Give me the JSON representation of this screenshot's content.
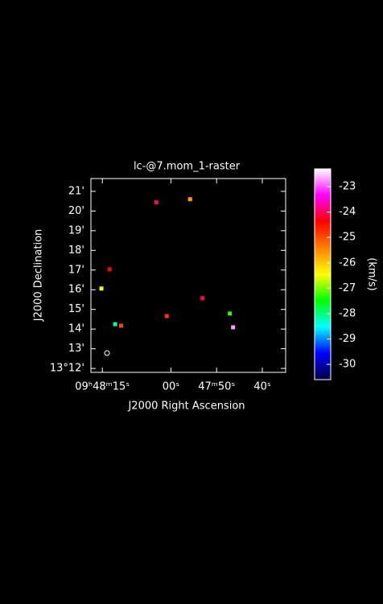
{
  "chart_data": {
    "type": "raster",
    "title": "lc-@7.mom_1-raster",
    "x_label": "J2000 Right Ascension",
    "y_label": "J2000 Declination",
    "colorbar_label": "(km/s)",
    "x": [
      3.2,
      -4.2,
      13.4,
      15.2,
      12.2,
      10.9,
      0.9,
      -6.9,
      -12.9,
      -13.6
    ],
    "y": [
      20.44,
      20.6,
      17.04,
      16.06,
      14.25,
      14.17,
      14.66,
      15.57,
      14.79,
      14.09
    ],
    "values": [
      -23.9,
      -25.6,
      -24.4,
      -26.5,
      -28.1,
      -24.9,
      -24.8,
      -24.1,
      -27.3,
      -22.7
    ],
    "xlim": [
      17.5,
      -25.1
    ],
    "ylim": [
      11.8,
      21.65
    ],
    "xticks": [
      {
        "value": 15,
        "label": "09ʰ48ᵐ15ˢ"
      },
      {
        "value": 0,
        "label": "00ˢ"
      },
      {
        "value": -10,
        "label": "47ᵐ50ˢ"
      },
      {
        "value": -20,
        "label": "40ˢ"
      }
    ],
    "yticks": [
      {
        "value": 12,
        "label": "13°12'"
      },
      {
        "value": 13,
        "label": "13'"
      },
      {
        "value": 14,
        "label": "14'"
      },
      {
        "value": 15,
        "label": "15'"
      },
      {
        "value": 16,
        "label": "16'"
      },
      {
        "value": 17,
        "label": "17'"
      },
      {
        "value": 18,
        "label": "18'"
      },
      {
        "value": 19,
        "label": "19'"
      },
      {
        "value": 20,
        "label": "20'"
      },
      {
        "value": 21,
        "label": "21'"
      }
    ],
    "clim": [
      -30.6,
      -22.3
    ],
    "cticks": [
      -30,
      -29,
      -28,
      -27,
      -26,
      -25,
      -24,
      -23
    ],
    "colormap": [
      "#000040",
      "#0000ff",
      "#00ffff",
      "#00ff00",
      "#ffff00",
      "#ff8000",
      "#ff0000",
      "#ff00ff",
      "#ffffff"
    ]
  }
}
